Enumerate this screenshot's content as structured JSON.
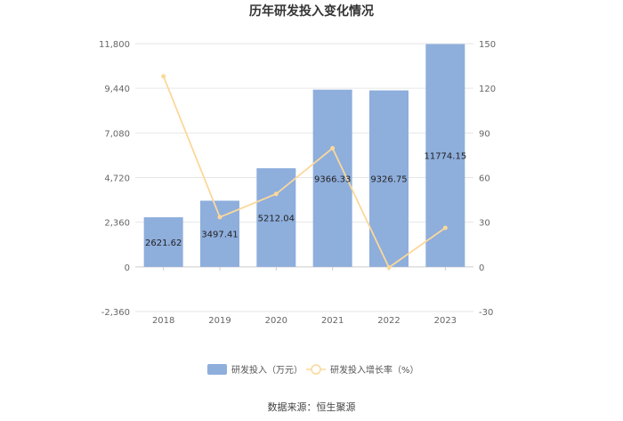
{
  "chart_data": {
    "type": "bar",
    "title": "历年研发投入变化情况",
    "categories": [
      "2018",
      "2019",
      "2020",
      "2021",
      "2022",
      "2023"
    ],
    "series": [
      {
        "name": "研发投入（万元）",
        "type": "bar",
        "axis": "left",
        "values": [
          2621.62,
          3497.41,
          5212.04,
          9366.33,
          9326.75,
          11774.15
        ],
        "labels": [
          "2621.62",
          "3497.41",
          "5212.04",
          "9366.33",
          "9326.75",
          "11774.15"
        ]
      },
      {
        "name": "研发投入增长率（%）",
        "type": "line",
        "axis": "right",
        "values": [
          128,
          33.4,
          49.0,
          79.7,
          -0.4,
          26.2
        ]
      }
    ],
    "y_left": {
      "ylim": [
        -2360,
        11800
      ],
      "ticks": [
        -2360,
        0,
        2360,
        4720,
        7080,
        9440,
        11800
      ],
      "tick_labels": [
        "-2,360",
        "0",
        "2,360",
        "4,720",
        "7,080",
        "9,440",
        "11,800"
      ]
    },
    "y_right": {
      "ylim": [
        -30,
        150
      ],
      "ticks": [
        -30,
        0,
        30,
        60,
        90,
        120,
        150
      ],
      "tick_labels": [
        "-30",
        "0",
        "30",
        "60",
        "90",
        "120",
        "150"
      ]
    },
    "grid": true,
    "legend_position": "bottom",
    "colors": {
      "bar": "#8eaedc",
      "line": "#fbd89a",
      "grid": "#e6e6e6",
      "axis": "#cccccc"
    }
  },
  "footer": {
    "source": "数据来源：恒生聚源"
  }
}
